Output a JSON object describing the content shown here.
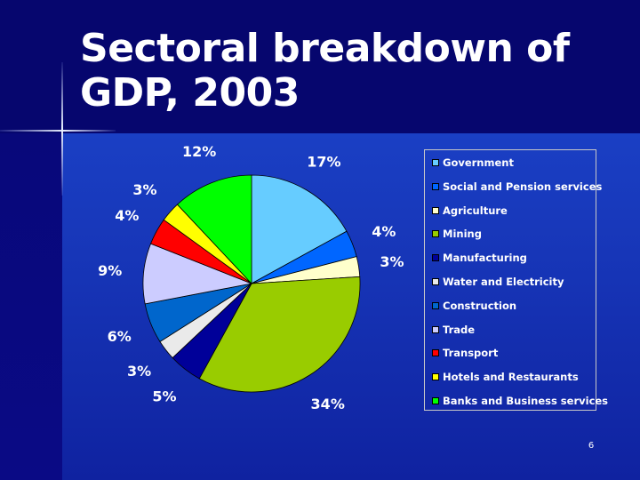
{
  "slide": {
    "title": "Sectoral breakdown of GDP, 2003",
    "page_number": "6"
  },
  "chart_data": {
    "type": "pie",
    "title": "",
    "legend_position": "right",
    "slices": [
      {
        "name": "Government",
        "value": 17,
        "label": "17%",
        "color": "#66ccff"
      },
      {
        "name": "Social and Pension services",
        "value": 4,
        "label": "4%",
        "color": "#0066ff"
      },
      {
        "name": "Agriculture",
        "value": 3,
        "label": "3%",
        "color": "#ffffcc"
      },
      {
        "name": "Mining",
        "value": 34,
        "label": "34%",
        "color": "#99cc00"
      },
      {
        "name": "Manufacturing",
        "value": 5,
        "label": "5%",
        "color": "#000099"
      },
      {
        "name": "Water and Electricity",
        "value": 3,
        "label": "3%",
        "color": "#eaeaea"
      },
      {
        "name": "Construction",
        "value": 6,
        "label": "6%",
        "color": "#0066cc"
      },
      {
        "name": "Trade",
        "value": 9,
        "label": "9%",
        "color": "#ccccff"
      },
      {
        "name": "Transport",
        "value": 4,
        "label": "4%",
        "color": "#ff0000"
      },
      {
        "name": "Hotels and Restaurants",
        "value": 3,
        "label": "3%",
        "color": "#ffff00"
      },
      {
        "name": "Banks and Business services",
        "value": 12,
        "label": "12%",
        "color": "#00ff00"
      }
    ]
  }
}
